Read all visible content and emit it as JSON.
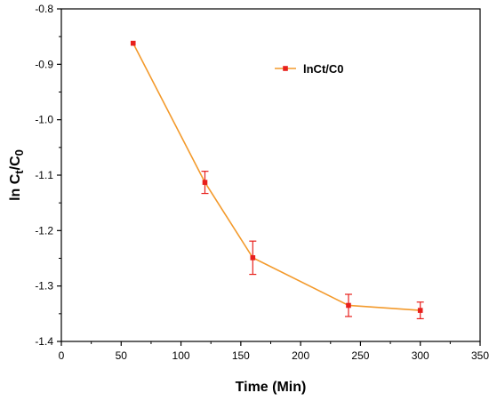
{
  "chart_data": {
    "type": "line",
    "title": "",
    "xlabel": "Time (Min)",
    "ylabel": {
      "prefix": "ln C",
      "sub1": "t",
      "mid": "/C",
      "sub2": "0"
    },
    "xlim": [
      0,
      350
    ],
    "ylim": [
      -1.4,
      -0.8
    ],
    "xticks": [
      0,
      50,
      100,
      150,
      200,
      250,
      300,
      350
    ],
    "yticks": [
      -1.4,
      -1.3,
      -1.2,
      -1.1,
      -1.0,
      -0.9,
      -0.8
    ],
    "xtick_labels": [
      "0",
      "50",
      "100",
      "150",
      "200",
      "250",
      "300",
      "350"
    ],
    "ytick_labels": [
      "-1.4",
      "-1.3",
      "-1.2",
      "-1.1",
      "-1.0",
      "-0.9",
      "-0.8"
    ],
    "grid": false,
    "legend_position": "top-right",
    "series": [
      {
        "name": "lnCt/C0",
        "line_color": "#f39a2c",
        "marker_color": "#e8201c",
        "x": [
          60,
          120,
          160,
          240,
          300
        ],
        "y": [
          -0.862,
          -1.113,
          -1.249,
          -1.335,
          -1.344
        ],
        "error": [
          0.0,
          0.02,
          0.03,
          0.02,
          0.015
        ]
      }
    ]
  }
}
